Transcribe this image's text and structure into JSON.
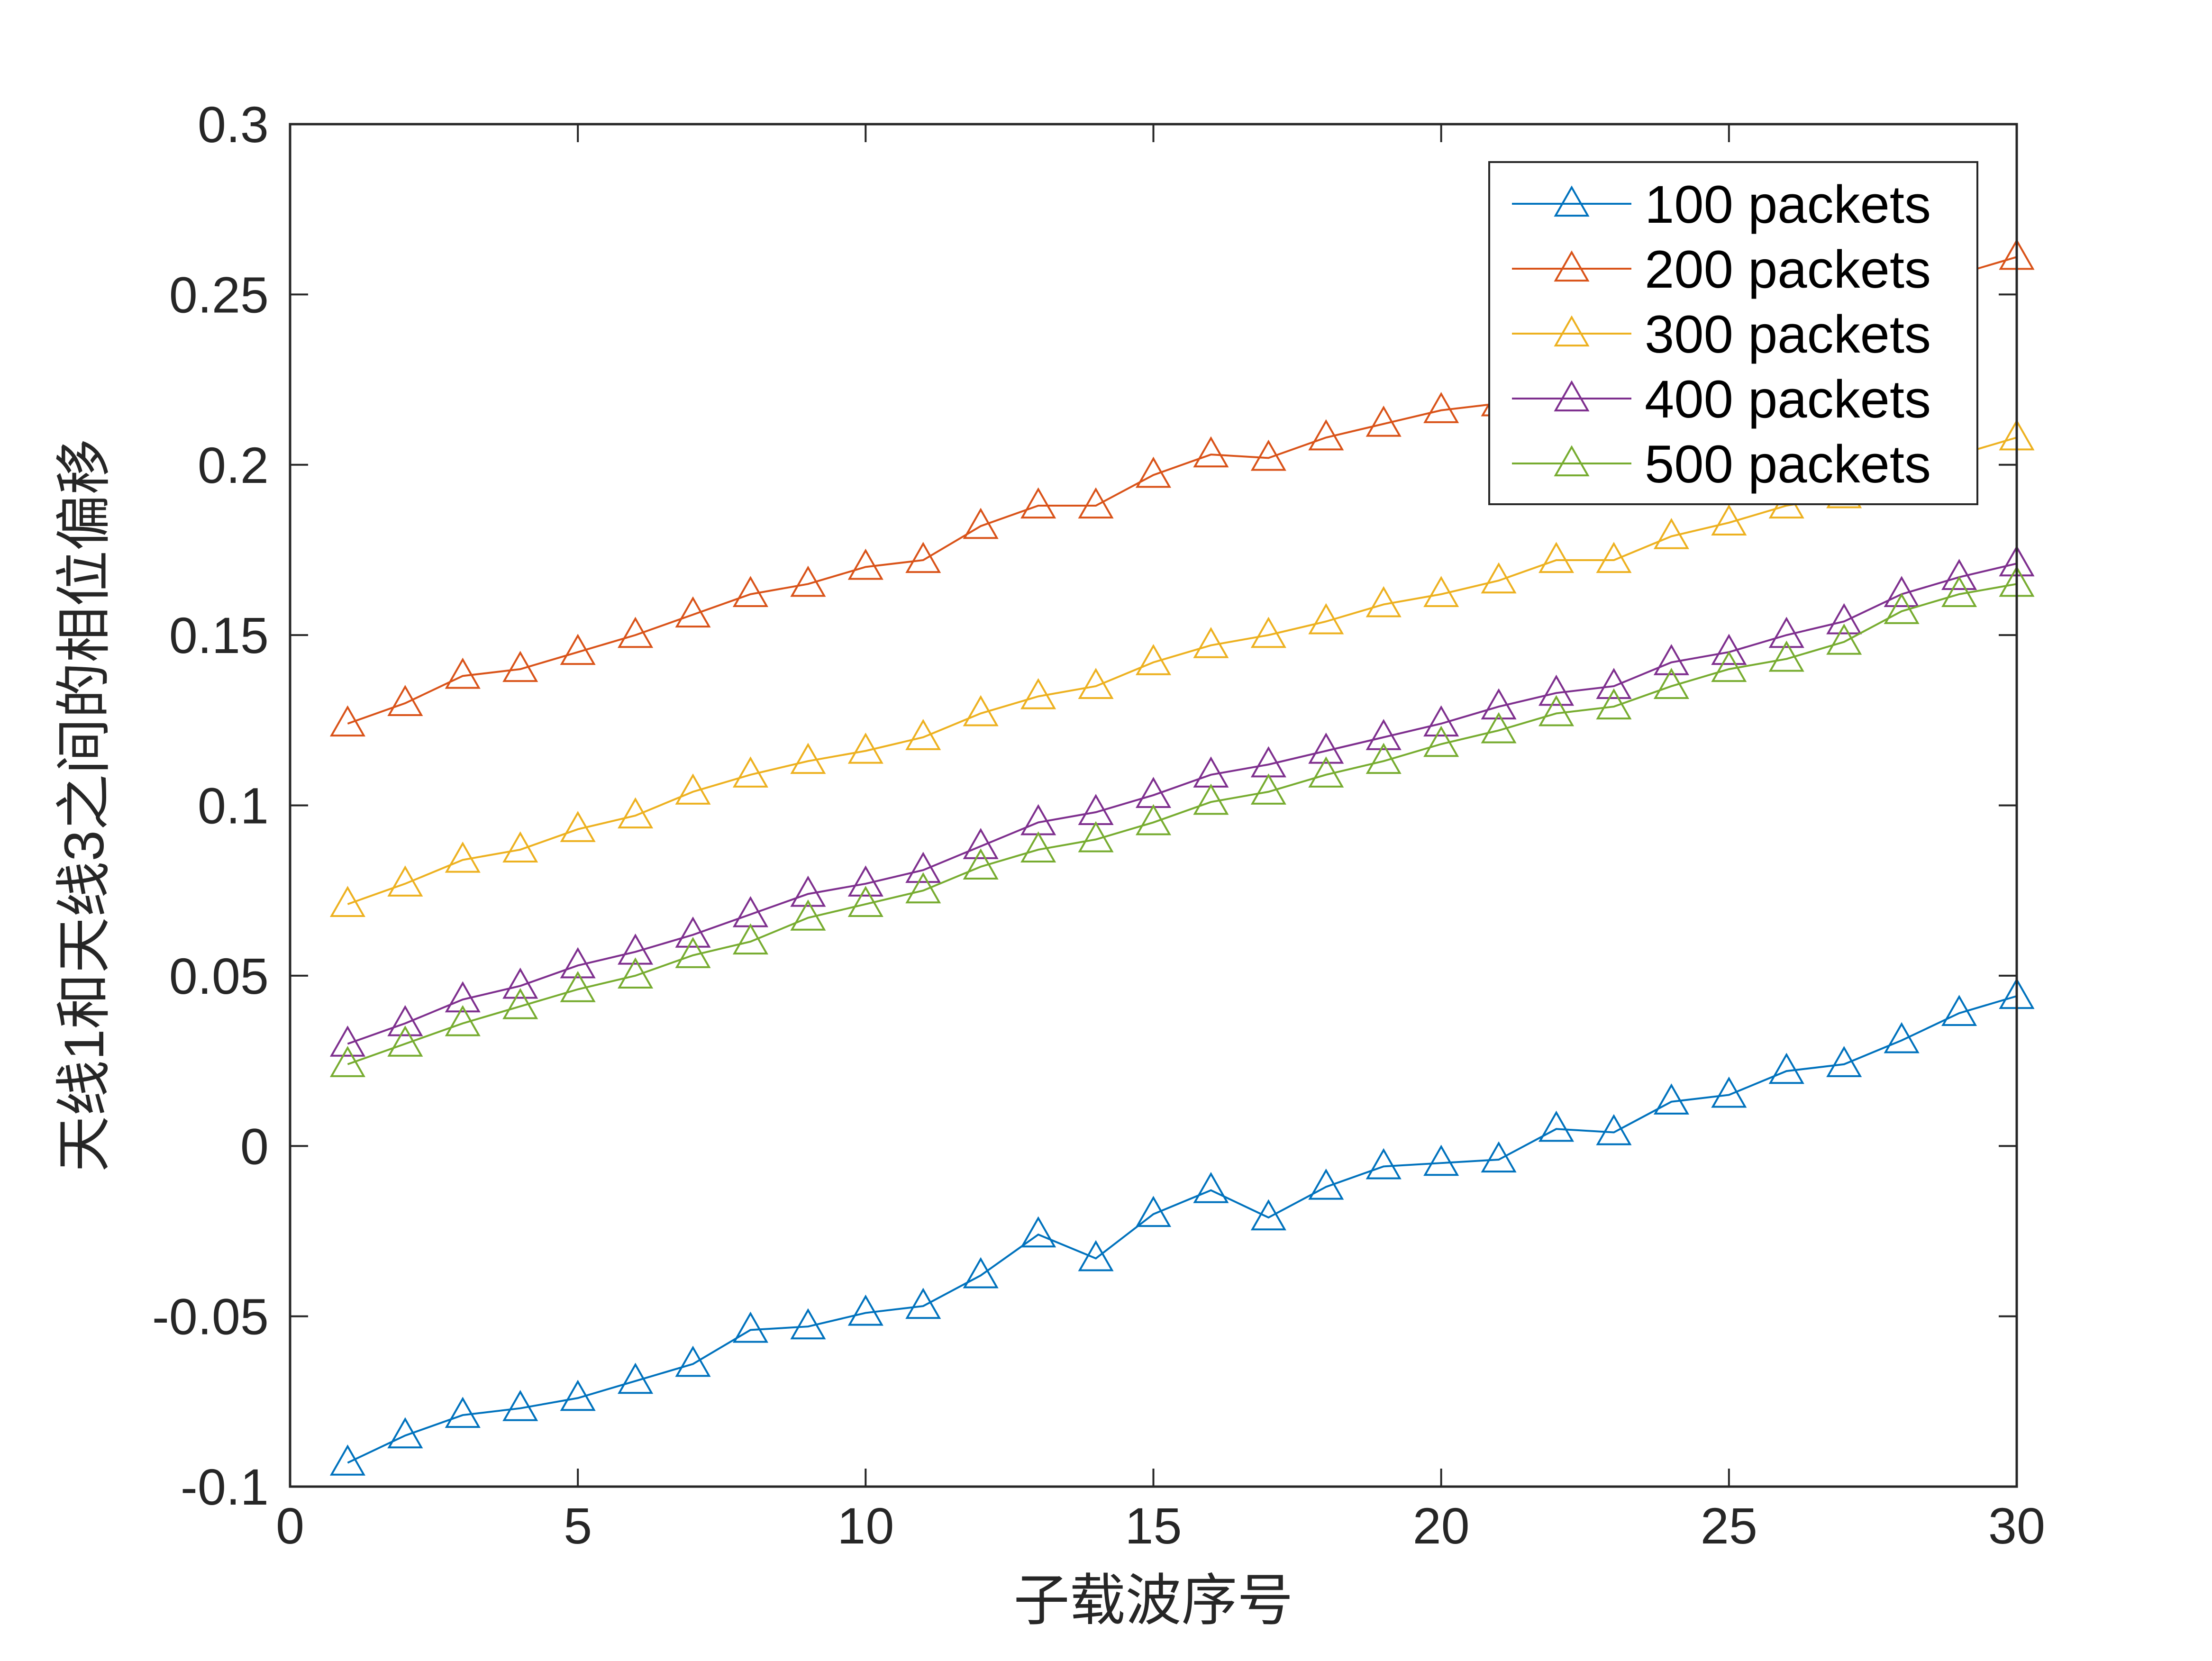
{
  "chart_data": {
    "type": "line",
    "title": "",
    "xlabel": "子载波序号",
    "ylabel": "天线1和天线3之间的相位偏移",
    "xlim": [
      0,
      30
    ],
    "ylim": [
      -0.1,
      0.3
    ],
    "xticks": [
      0,
      5,
      10,
      15,
      20,
      25,
      30
    ],
    "xtick_labels": [
      "0",
      "5",
      "10",
      "15",
      "20",
      "25",
      "30"
    ],
    "yticks": [
      -0.1,
      -0.05,
      0,
      0.05,
      0.1,
      0.15,
      0.2,
      0.25,
      0.3
    ],
    "ytick_labels": [
      "-0.1",
      "-0.05",
      "0",
      "0.05",
      "0.1",
      "0.15",
      "0.2",
      "0.25",
      "0.3"
    ],
    "grid": false,
    "legend_position": "top-right",
    "marker": "triangle",
    "x": [
      1,
      2,
      3,
      4,
      5,
      6,
      7,
      8,
      9,
      10,
      11,
      12,
      13,
      14,
      15,
      16,
      17,
      18,
      19,
      20,
      21,
      22,
      23,
      24,
      25,
      26,
      27,
      28,
      29,
      30
    ],
    "series": [
      {
        "name": "100 packets",
        "color": "#0072BD",
        "values": [
          -0.093,
          -0.085,
          -0.079,
          -0.077,
          -0.074,
          -0.069,
          -0.064,
          -0.054,
          -0.053,
          -0.049,
          -0.047,
          -0.038,
          -0.026,
          -0.033,
          -0.02,
          -0.013,
          -0.021,
          -0.012,
          -0.006,
          -0.005,
          -0.004,
          0.005,
          0.004,
          0.013,
          0.015,
          0.022,
          0.024,
          0.031,
          0.039,
          0.044
        ]
      },
      {
        "name": "200 packets",
        "color": "#D95319",
        "values": [
          0.124,
          0.13,
          0.138,
          0.14,
          0.145,
          0.15,
          0.156,
          0.162,
          0.165,
          0.17,
          0.172,
          0.182,
          0.188,
          0.188,
          0.197,
          0.203,
          0.202,
          0.208,
          0.212,
          0.216,
          0.218,
          0.224,
          0.228,
          0.233,
          0.238,
          0.243,
          0.248,
          0.252,
          0.256,
          0.261
        ]
      },
      {
        "name": "300 packets",
        "color": "#EDB120",
        "values": [
          0.071,
          0.077,
          0.084,
          0.087,
          0.093,
          0.097,
          0.104,
          0.109,
          0.113,
          0.116,
          0.12,
          0.127,
          0.132,
          0.135,
          0.142,
          0.147,
          0.15,
          0.154,
          0.159,
          0.162,
          0.166,
          0.172,
          0.172,
          0.179,
          0.183,
          0.188,
          0.191,
          0.197,
          0.203,
          0.208
        ]
      },
      {
        "name": "400 packets",
        "color": "#7E2F8E",
        "values": [
          0.03,
          0.036,
          0.043,
          0.047,
          0.053,
          0.057,
          0.062,
          0.068,
          0.074,
          0.077,
          0.081,
          0.088,
          0.095,
          0.098,
          0.103,
          0.109,
          0.112,
          0.116,
          0.12,
          0.124,
          0.129,
          0.133,
          0.135,
          0.142,
          0.145,
          0.15,
          0.154,
          0.162,
          0.167,
          0.171
        ]
      },
      {
        "name": "500 packets",
        "color": "#77AC30",
        "values": [
          0.024,
          0.03,
          0.036,
          0.041,
          0.046,
          0.05,
          0.056,
          0.06,
          0.067,
          0.071,
          0.075,
          0.082,
          0.087,
          0.09,
          0.095,
          0.101,
          0.104,
          0.109,
          0.113,
          0.118,
          0.122,
          0.127,
          0.129,
          0.135,
          0.14,
          0.143,
          0.148,
          0.157,
          0.162,
          0.165
        ]
      }
    ]
  }
}
